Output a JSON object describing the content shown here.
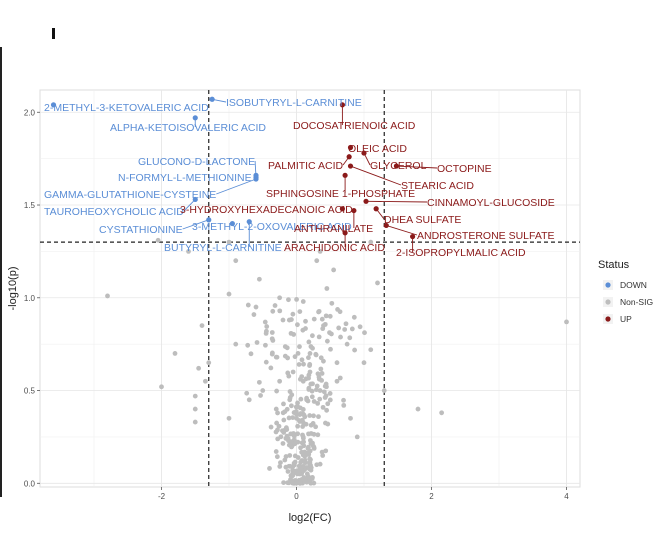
{
  "chart_data": {
    "type": "scatter",
    "title": "",
    "xlabel": "log2(FC)",
    "ylabel": "-log10(p)",
    "xlim": [
      -3.8,
      4.2
    ],
    "ylim": [
      -0.02,
      2.12
    ],
    "x_ticks": [
      "-2",
      "0",
      "2",
      "4"
    ],
    "x_tick_values": [
      -2,
      0,
      2,
      4
    ],
    "y_ticks": [
      "0.0",
      "0.5",
      "1.0",
      "1.5",
      "2.0"
    ],
    "y_tick_values": [
      0.0,
      0.5,
      1.0,
      1.5,
      2.0
    ],
    "thresholds": {
      "fc_low": -1.3,
      "fc_high": 1.3,
      "p": 1.3
    },
    "grid": true,
    "colors": {
      "DOWN": "#5b8ed6",
      "Non-SIG": "#bdbdbd",
      "UP": "#8b1a1a"
    },
    "legend": {
      "title": "Status",
      "placement": "right",
      "entries": [
        "DOWN",
        "Non-SIG",
        "UP"
      ]
    },
    "labeled_points": [
      {
        "label": "2-METHYL-3-KETOVALERIC ACID",
        "x": -3.6,
        "y": 2.04,
        "status": "DOWN"
      },
      {
        "label": "ISOBUTYRYL-L-CARNITINE",
        "x": -1.25,
        "y": 2.07,
        "status": "DOWN"
      },
      {
        "label": "ALPHA-KETOISOVALERIC ACID",
        "x": -1.5,
        "y": 1.97,
        "status": "DOWN"
      },
      {
        "label": "GLUCONO-D-LACTONE",
        "x": -0.6,
        "y": 1.65,
        "status": "DOWN"
      },
      {
        "label": "N-FORMYL-L-METHIONINE",
        "x": -0.6,
        "y": 1.66,
        "status": "DOWN"
      },
      {
        "label": "GAMMA-GLUTATHIONE-CYSTEINE",
        "x": -0.6,
        "y": 1.64,
        "status": "DOWN"
      },
      {
        "label": "TAUROHEOXYCHOLIC ACID",
        "x": -1.5,
        "y": 1.53,
        "status": "DOWN"
      },
      {
        "label": "CYSTATHIONINE",
        "x": -1.3,
        "y": 1.42,
        "status": "DOWN"
      },
      {
        "label": "3-METHYL-2-OXOVALERIC ACID",
        "x": -0.95,
        "y": 1.4,
        "status": "DOWN"
      },
      {
        "label": "BUTYRYL-L-CARNITINE",
        "x": -0.7,
        "y": 1.41,
        "status": "DOWN"
      },
      {
        "label": "DOCOSATRIENOIC ACID",
        "x": 0.68,
        "y": 2.04,
        "status": "UP"
      },
      {
        "label": "OLEIC ACID",
        "x": 0.8,
        "y": 1.81,
        "status": "UP"
      },
      {
        "label": "PALMITIC ACID",
        "x": 0.78,
        "y": 1.76,
        "status": "UP"
      },
      {
        "label": "GLYCEROL",
        "x": 1.0,
        "y": 1.78,
        "status": "UP"
      },
      {
        "label": "OCTOPINE",
        "x": 1.48,
        "y": 1.71,
        "status": "UP"
      },
      {
        "label": "STEARIC ACID",
        "x": 0.8,
        "y": 1.71,
        "status": "UP"
      },
      {
        "label": "SPHINGOSINE 1-PHOSPHATE",
        "x": 0.72,
        "y": 1.66,
        "status": "UP"
      },
      {
        "label": "CINNAMOYL-GLUCOSIDE",
        "x": 1.03,
        "y": 1.52,
        "status": "UP"
      },
      {
        "label": "3-HYDROXYHEXADECANOIC ACID",
        "x": 0.68,
        "y": 1.48,
        "status": "UP"
      },
      {
        "label": "DHEA SULFATE",
        "x": 1.18,
        "y": 1.48,
        "status": "UP"
      },
      {
        "label": "ANTHRANILATE",
        "x": 0.85,
        "y": 1.47,
        "status": "UP"
      },
      {
        "label": "ANDROSTERONE SULFATE",
        "x": 1.33,
        "y": 1.39,
        "status": "UP"
      },
      {
        "label": "ARACHIDONIC ACID",
        "x": 0.72,
        "y": 1.35,
        "status": "UP"
      },
      {
        "label": "2-ISOPROPYLMALIC ACID",
        "x": 1.72,
        "y": 1.33,
        "status": "UP"
      }
    ],
    "points": [
      {
        "x": 4.0,
        "y": 0.87,
        "status": "Non-SIG"
      },
      {
        "x": -2.8,
        "y": 1.01,
        "status": "Non-SIG"
      },
      {
        "x": -1.0,
        "y": 1.3,
        "status": "Non-SIG"
      },
      {
        "x": -1.6,
        "y": 1.25,
        "status": "Non-SIG"
      },
      {
        "x": -2.05,
        "y": 1.31,
        "status": "Non-SIG"
      },
      {
        "x": -1.8,
        "y": 0.7,
        "status": "Non-SIG"
      },
      {
        "x": -2.0,
        "y": 0.52,
        "status": "Non-SIG"
      },
      {
        "x": -1.4,
        "y": 0.85,
        "status": "Non-SIG"
      },
      {
        "x": -1.35,
        "y": 0.55,
        "status": "Non-SIG"
      },
      {
        "x": -1.5,
        "y": 0.47,
        "status": "Non-SIG"
      },
      {
        "x": -1.5,
        "y": 0.4,
        "status": "Non-SIG"
      },
      {
        "x": -1.5,
        "y": 0.33,
        "status": "Non-SIG"
      },
      {
        "x": -1.45,
        "y": 0.62,
        "status": "Non-SIG"
      },
      {
        "x": -1.3,
        "y": 0.65,
        "status": "Non-SIG"
      },
      {
        "x": -1.0,
        "y": 1.02,
        "status": "Non-SIG"
      },
      {
        "x": -0.9,
        "y": 1.2,
        "status": "Non-SIG"
      },
      {
        "x": -0.9,
        "y": 0.75,
        "status": "Non-SIG"
      },
      {
        "x": -1.0,
        "y": 0.35,
        "status": "Non-SIG"
      },
      {
        "x": -0.7,
        "y": 0.45,
        "status": "Non-SIG"
      },
      {
        "x": -0.5,
        "y": 0.5,
        "status": "Non-SIG"
      },
      {
        "x": -0.4,
        "y": 0.08,
        "status": "Non-SIG"
      },
      {
        "x": -0.3,
        "y": 0.4,
        "status": "Non-SIG"
      },
      {
        "x": -0.35,
        "y": 0.77,
        "status": "Non-SIG"
      },
      {
        "x": -0.3,
        "y": 0.68,
        "status": "Non-SIG"
      },
      {
        "x": -0.2,
        "y": 0.88,
        "status": "Non-SIG"
      },
      {
        "x": -0.25,
        "y": 0.55,
        "status": "Non-SIG"
      },
      {
        "x": -0.15,
        "y": 0.3,
        "status": "Non-SIG"
      },
      {
        "x": -0.1,
        "y": 0.15,
        "status": "Non-SIG"
      },
      {
        "x": -0.05,
        "y": 0.6,
        "status": "Non-SIG"
      },
      {
        "x": 0.0,
        "y": 0.35,
        "status": "Non-SIG"
      },
      {
        "x": 0.05,
        "y": 0.05,
        "status": "Non-SIG"
      },
      {
        "x": 0.1,
        "y": 0.25,
        "status": "Non-SIG"
      },
      {
        "x": 0.15,
        "y": 0.45,
        "status": "Non-SIG"
      },
      {
        "x": 0.2,
        "y": 0.7,
        "status": "Non-SIG"
      },
      {
        "x": 0.25,
        "y": 0.2,
        "status": "Non-SIG"
      },
      {
        "x": 0.3,
        "y": 0.1,
        "status": "Non-SIG"
      },
      {
        "x": 0.35,
        "y": 0.5,
        "status": "Non-SIG"
      },
      {
        "x": 0.4,
        "y": 0.85,
        "status": "Non-SIG"
      },
      {
        "x": 0.45,
        "y": 1.05,
        "status": "Non-SIG"
      },
      {
        "x": 0.5,
        "y": 0.9,
        "status": "Non-SIG"
      },
      {
        "x": 0.55,
        "y": 1.15,
        "status": "Non-SIG"
      },
      {
        "x": 0.6,
        "y": 0.65,
        "status": "Non-SIG"
      },
      {
        "x": 0.7,
        "y": 0.42,
        "status": "Non-SIG"
      },
      {
        "x": 0.8,
        "y": 0.35,
        "status": "Non-SIG"
      },
      {
        "x": 0.75,
        "y": 0.75,
        "status": "Non-SIG"
      },
      {
        "x": 0.9,
        "y": 0.25,
        "status": "Non-SIG"
      },
      {
        "x": 1.0,
        "y": 0.65,
        "status": "Non-SIG"
      },
      {
        "x": 1.1,
        "y": 0.72,
        "status": "Non-SIG"
      },
      {
        "x": 1.2,
        "y": 1.08,
        "status": "Non-SIG"
      },
      {
        "x": 1.1,
        "y": 1.3,
        "status": "Non-SIG"
      },
      {
        "x": 1.8,
        "y": 0.4,
        "status": "Non-SIG"
      },
      {
        "x": 2.15,
        "y": 0.38,
        "status": "Non-SIG"
      },
      {
        "x": 1.3,
        "y": 0.5,
        "status": "Non-SIG"
      },
      {
        "x": 0.3,
        "y": 1.2,
        "status": "Non-SIG"
      },
      {
        "x": 0.35,
        "y": 1.25,
        "status": "Non-SIG"
      },
      {
        "x": -0.6,
        "y": 0.95,
        "status": "Non-SIG"
      },
      {
        "x": -0.55,
        "y": 1.1,
        "status": "Non-SIG"
      },
      {
        "x": -0.25,
        "y": 1.0,
        "status": "Non-SIG"
      },
      {
        "x": 0.6,
        "y": 0.55,
        "status": "Non-SIG"
      },
      {
        "x": 0.2,
        "y": 0.6,
        "status": "Non-SIG"
      },
      {
        "x": -0.1,
        "y": 0.45,
        "status": "Non-SIG"
      },
      {
        "x": 0.1,
        "y": 0.55,
        "status": "Non-SIG"
      }
    ]
  }
}
